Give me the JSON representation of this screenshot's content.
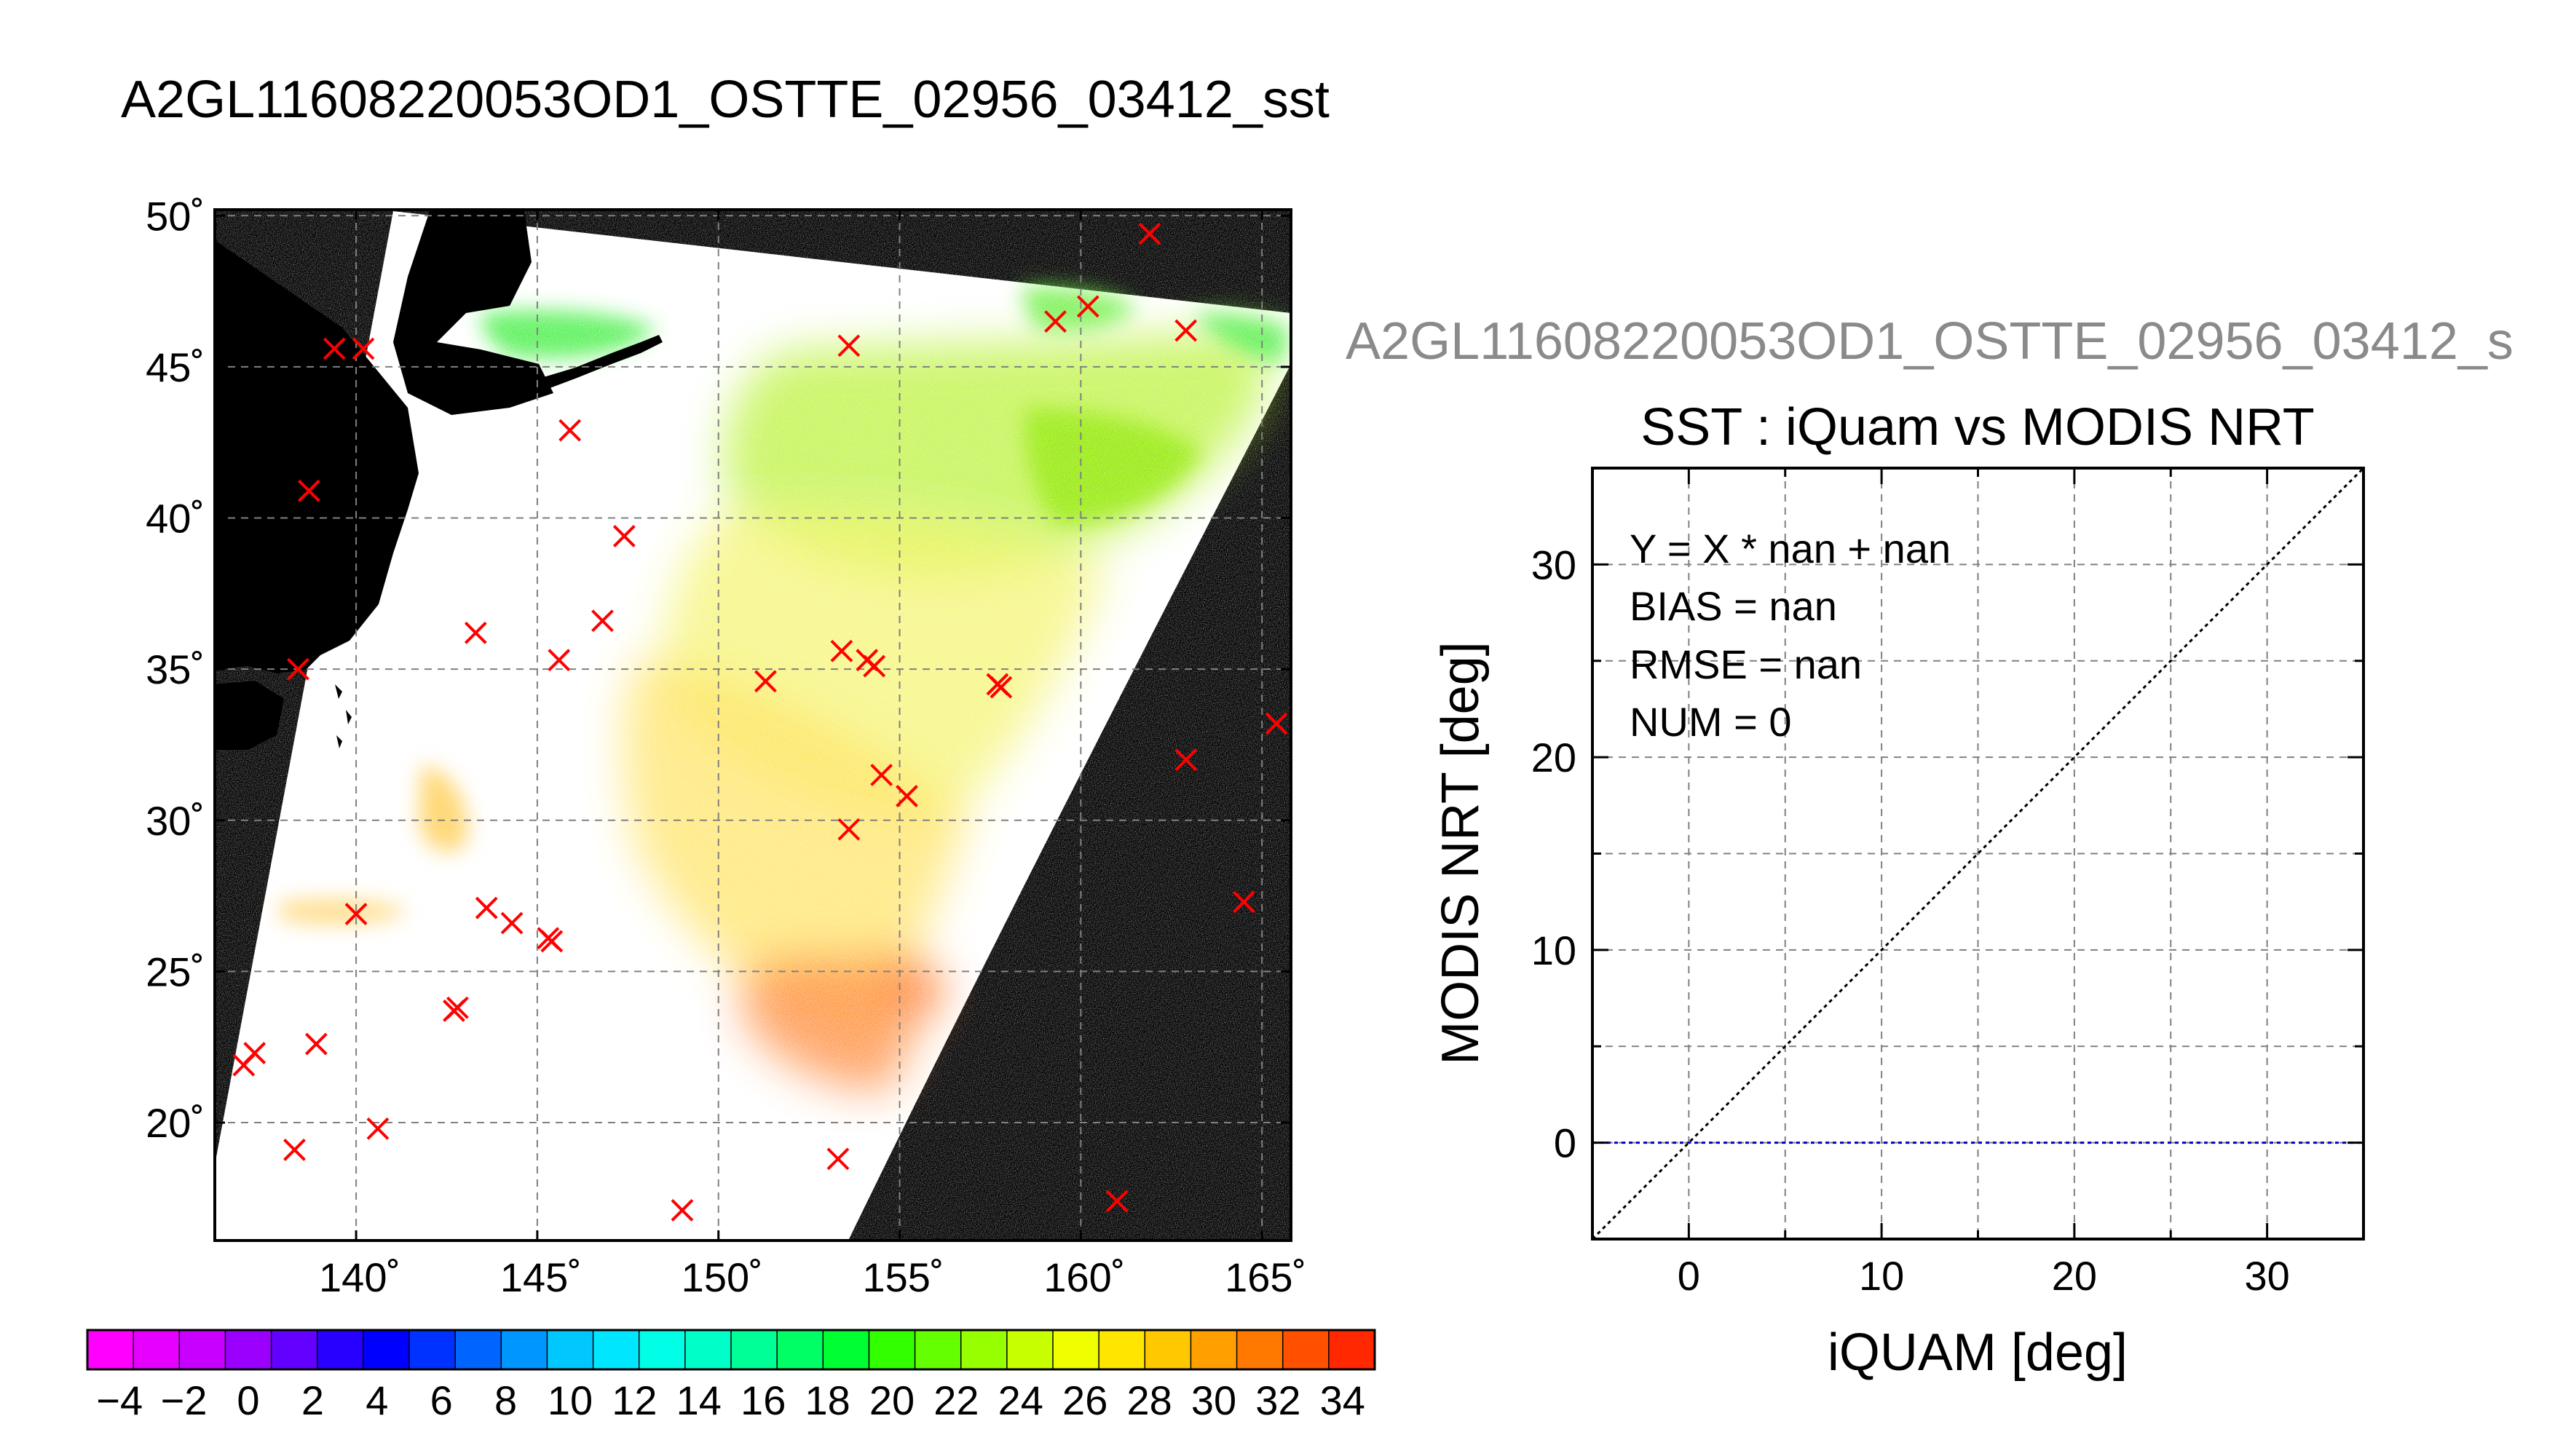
{
  "title": "A2GL11608220053OD1_OSTTE_02956_03412_sst",
  "subtitle_truncated": "A2GL11608220053OD1_OSTTE_02956_03412_s",
  "colors": {
    "land": "#000000",
    "no_data": "#ffffff",
    "marker": "#ff0000",
    "grid": "#808080",
    "identity_line": "#000000",
    "zero_line": "#0000cc"
  },
  "chart_data": [
    {
      "type": "heatmap",
      "title": "",
      "xlabel": "",
      "ylabel": "",
      "x_ticks": [
        140,
        145,
        150,
        155,
        160,
        165
      ],
      "x_tick_labels": [
        "140˚",
        "145˚",
        "150˚",
        "155˚",
        "160˚",
        "165˚"
      ],
      "y_ticks": [
        20,
        25,
        30,
        35,
        40,
        45,
        50
      ],
      "y_tick_labels": [
        "20˚",
        "25˚",
        "30˚",
        "35˚",
        "40˚",
        "45˚",
        "50˚"
      ],
      "xlim": [
        136.1,
        165.8
      ],
      "ylim": [
        16.1,
        50.2
      ],
      "grid": true,
      "colorbar": {
        "min": -5,
        "max": 35,
        "tick_values": [
          -4,
          -2,
          0,
          2,
          4,
          6,
          8,
          10,
          12,
          14,
          16,
          18,
          20,
          22,
          24,
          26,
          28,
          30,
          32,
          34
        ],
        "tick_labels": [
          "−4",
          "−2",
          "0",
          "2",
          "4",
          "6",
          "8",
          "10",
          "12",
          "14",
          "16",
          "18",
          "20",
          "22",
          "24",
          "26",
          "28",
          "30",
          "32",
          "34"
        ],
        "colors": [
          "#ff00ff",
          "#e600ff",
          "#c800ff",
          "#9b00ff",
          "#6400ff",
          "#2800ff",
          "#0000ff",
          "#0032ff",
          "#0064ff",
          "#0096ff",
          "#00c8ff",
          "#00e6ff",
          "#00ffe6",
          "#00ffc8",
          "#00ff96",
          "#00ff64",
          "#00ff32",
          "#32ff00",
          "#64ff00",
          "#96ff00",
          "#c8ff00",
          "#f0ff00",
          "#ffe600",
          "#ffc800",
          "#ffa000",
          "#ff7800",
          "#ff5000",
          "#ff2800"
        ]
      },
      "markers": [
        [
          161.9,
          49.4
        ],
        [
          139.4,
          45.6
        ],
        [
          140.2,
          45.6
        ],
        [
          145.9,
          42.9
        ],
        [
          138.7,
          40.9
        ],
        [
          147.4,
          39.4
        ],
        [
          143.3,
          36.2
        ],
        [
          146.8,
          36.6
        ],
        [
          145.6,
          35.3
        ],
        [
          138.4,
          35.0
        ],
        [
          151.3,
          34.6
        ],
        [
          153.4,
          35.6
        ],
        [
          154.1,
          35.3
        ],
        [
          154.3,
          35.1
        ],
        [
          157.7,
          34.5
        ],
        [
          157.8,
          34.4
        ],
        [
          154.5,
          31.5
        ],
        [
          155.2,
          30.8
        ],
        [
          153.6,
          29.7
        ],
        [
          162.9,
          32.0
        ],
        [
          165.4,
          33.2
        ],
        [
          164.5,
          27.3
        ],
        [
          140.0,
          26.9
        ],
        [
          143.6,
          27.1
        ],
        [
          144.3,
          26.6
        ],
        [
          145.3,
          26.1
        ],
        [
          145.4,
          26.0
        ],
        [
          142.7,
          23.7
        ],
        [
          142.8,
          23.8
        ],
        [
          137.2,
          22.3
        ],
        [
          136.9,
          21.9
        ],
        [
          138.9,
          22.6
        ],
        [
          140.6,
          19.8
        ],
        [
          138.3,
          19.1
        ],
        [
          149.0,
          17.1
        ],
        [
          153.3,
          18.8
        ],
        [
          161.0,
          17.4
        ],
        [
          159.3,
          46.5
        ],
        [
          160.2,
          47.0
        ],
        [
          162.9,
          46.2
        ],
        [
          153.6,
          45.7
        ]
      ]
    },
    {
      "type": "scatter",
      "title": "SST : iQuam vs MODIS NRT",
      "xlabel": "iQUAM [deg]",
      "ylabel": "MODIS NRT [deg]",
      "xlim": [
        -5,
        35
      ],
      "ylim": [
        -5,
        35
      ],
      "x_ticks": [
        0,
        10,
        20,
        30
      ],
      "y_ticks": [
        0,
        10,
        20,
        30
      ],
      "grid": true,
      "points": [],
      "reference_lines": [
        {
          "kind": "identity",
          "slope": 1,
          "intercept": 0
        },
        {
          "kind": "horizontal",
          "y": 0
        }
      ],
      "stats_lines": [
        "Y = X * nan + nan",
        "BIAS = nan",
        "RMSE = nan",
        "NUM = 0"
      ]
    }
  ]
}
